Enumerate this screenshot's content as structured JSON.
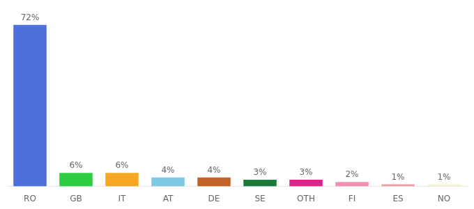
{
  "chart_data": {
    "type": "bar",
    "categories": [
      "RO",
      "GB",
      "IT",
      "AT",
      "DE",
      "SE",
      "OTH",
      "FI",
      "ES",
      "NO"
    ],
    "values": [
      72,
      6,
      6,
      4,
      4,
      3,
      3,
      2,
      1,
      1
    ],
    "value_labels": [
      "72%",
      "6%",
      "6%",
      "4%",
      "4%",
      "3%",
      "3%",
      "2%",
      "1%",
      "1%"
    ],
    "colors": [
      "#4f6fda",
      "#2ecc40",
      "#f5a623",
      "#7ec8e3",
      "#c0622a",
      "#1a7a3a",
      "#e91e8c",
      "#f48fb1",
      "#e8a0a8",
      "#f5f0d8"
    ],
    "ylim": [
      0,
      80
    ],
    "data_labels": true,
    "tick_labels": "x",
    "grid": false
  }
}
